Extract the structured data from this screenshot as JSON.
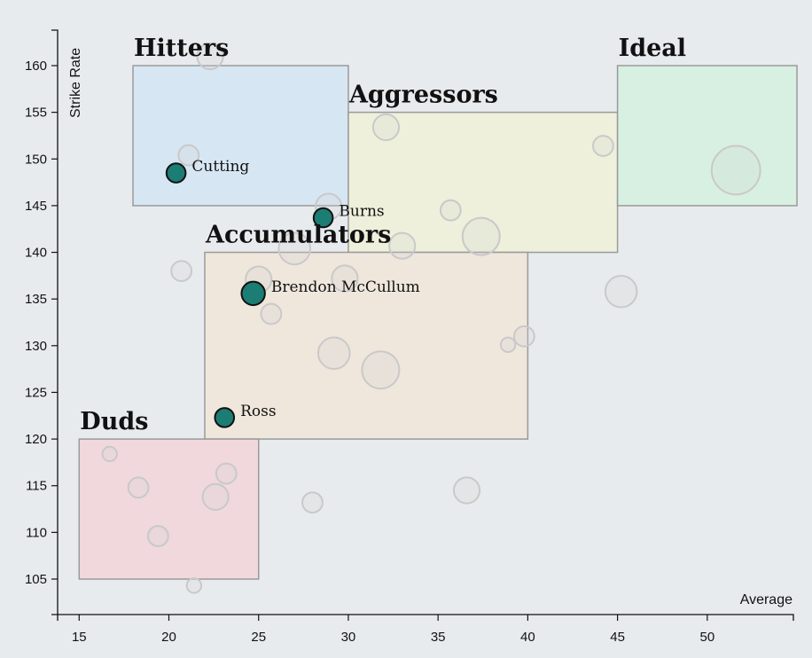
{
  "chart_data": {
    "type": "scatter",
    "title": "",
    "xlabel": "Average",
    "ylabel": "Strike Rate",
    "xlim": [
      13.8,
      54.8
    ],
    "ylim": [
      101.2,
      163.8
    ],
    "x_ticks": [
      15,
      20,
      25,
      30,
      35,
      40,
      45,
      50
    ],
    "y_ticks": [
      105,
      110,
      115,
      120,
      125,
      130,
      135,
      140,
      145,
      150,
      155,
      160
    ],
    "grid": false,
    "zones": [
      {
        "name": "Hitters",
        "x": [
          18,
          30
        ],
        "y": [
          145,
          160
        ],
        "color": "#d7e6f3"
      },
      {
        "name": "Aggressors",
        "x": [
          30,
          45
        ],
        "y": [
          140,
          155
        ],
        "color": "#eef0db"
      },
      {
        "name": "Ideal",
        "x": [
          45,
          55
        ],
        "y": [
          145,
          160
        ],
        "color": "#d7f0e1"
      },
      {
        "name": "Accumulators",
        "x": [
          22,
          40
        ],
        "y": [
          120,
          140
        ],
        "color": "#efe6dc"
      },
      {
        "name": "Duds",
        "x": [
          15,
          25
        ],
        "y": [
          105,
          120
        ],
        "color": "#f1d8dc"
      }
    ],
    "highlighted": [
      {
        "label": "Cutting",
        "x": 20.4,
        "y": 148.5,
        "size": 2
      },
      {
        "label": "Burns",
        "x": 28.6,
        "y": 143.7,
        "size": 2
      },
      {
        "label": "Brendon McCullum",
        "x": 24.7,
        "y": 135.6,
        "size": 3
      },
      {
        "label": "Ross",
        "x": 23.1,
        "y": 122.3,
        "size": 2
      }
    ],
    "points": [
      {
        "x": 22.3,
        "y": 161.0,
        "size": 3
      },
      {
        "x": 21.1,
        "y": 150.4,
        "size": 2
      },
      {
        "x": 32.1,
        "y": 153.4,
        "size": 3
      },
      {
        "x": 44.2,
        "y": 151.4,
        "size": 2
      },
      {
        "x": 51.6,
        "y": 148.8,
        "size": 7
      },
      {
        "x": 28.9,
        "y": 144.9,
        "size": 3
      },
      {
        "x": 35.7,
        "y": 144.5,
        "size": 2
      },
      {
        "x": 37.4,
        "y": 141.7,
        "size": 5
      },
      {
        "x": 33.0,
        "y": 140.7,
        "size": 3
      },
      {
        "x": 27.0,
        "y": 140.4,
        "size": 4
      },
      {
        "x": 20.7,
        "y": 138.0,
        "size": 2
      },
      {
        "x": 25.0,
        "y": 137.1,
        "size": 3
      },
      {
        "x": 29.8,
        "y": 137.2,
        "size": 3
      },
      {
        "x": 45.2,
        "y": 135.8,
        "size": 4
      },
      {
        "x": 25.7,
        "y": 133.4,
        "size": 2
      },
      {
        "x": 29.2,
        "y": 129.2,
        "size": 4
      },
      {
        "x": 31.8,
        "y": 127.4,
        "size": 5
      },
      {
        "x": 39.8,
        "y": 131.0,
        "size": 2
      },
      {
        "x": 38.9,
        "y": 130.1,
        "size": 1
      },
      {
        "x": 16.7,
        "y": 118.4,
        "size": 1
      },
      {
        "x": 23.2,
        "y": 116.3,
        "size": 2
      },
      {
        "x": 18.3,
        "y": 114.8,
        "size": 2
      },
      {
        "x": 22.6,
        "y": 113.8,
        "size": 3
      },
      {
        "x": 36.6,
        "y": 114.5,
        "size": 3
      },
      {
        "x": 28.0,
        "y": 113.2,
        "size": 2
      },
      {
        "x": 19.4,
        "y": 109.6,
        "size": 2
      },
      {
        "x": 21.4,
        "y": 104.3,
        "size": 1
      }
    ]
  }
}
